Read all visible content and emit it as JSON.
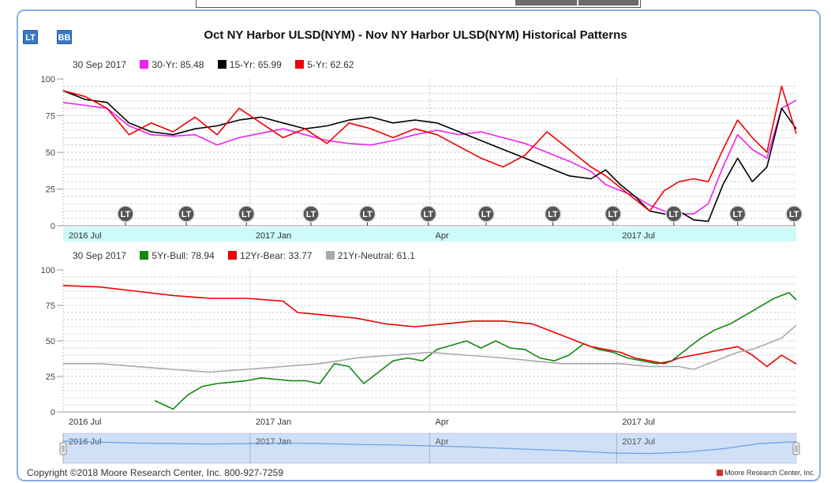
{
  "toolbar": {
    "lt_label": "LT",
    "bb_label": "BB"
  },
  "header": {
    "title": "Oct NY Harbor ULSD(NYM) - Nov NY Harbor ULSD(NYM) Historical Patterns"
  },
  "footer": {
    "copyright": "Copyright ©2018 Moore Research Center, Inc. 800-927-7259",
    "logo_text": "Moore Research Center, Inc."
  },
  "colors": {
    "magenta": "#ee22ee",
    "black": "#000000",
    "red": "#ee0000",
    "green": "#118811",
    "gray": "#aaaaaa",
    "navigator": "#6aa0dd"
  },
  "chart_data": [
    {
      "type": "line",
      "legend_date": "30 Sep 2017",
      "ylim": [
        0,
        100
      ],
      "yticks": [
        "0",
        "25",
        "50",
        "75",
        "100"
      ],
      "xticks": [
        "2016 Jul",
        "2017 Jan",
        "Apr",
        "2017 Jul"
      ],
      "marker_label": "LT",
      "series": [
        {
          "name": "30-Yr: 85.48",
          "color": "#ee22ee",
          "points": [
            [
              0,
              84
            ],
            [
              0.03,
              82
            ],
            [
              0.06,
              80
            ],
            [
              0.09,
              68
            ],
            [
              0.12,
              62
            ],
            [
              0.15,
              61
            ],
            [
              0.18,
              62
            ],
            [
              0.21,
              55
            ],
            [
              0.24,
              60
            ],
            [
              0.27,
              63
            ],
            [
              0.3,
              66
            ],
            [
              0.33,
              62
            ],
            [
              0.36,
              58
            ],
            [
              0.39,
              56
            ],
            [
              0.42,
              55
            ],
            [
              0.45,
              58
            ],
            [
              0.48,
              62
            ],
            [
              0.51,
              65
            ],
            [
              0.54,
              62
            ],
            [
              0.57,
              64
            ],
            [
              0.6,
              60
            ],
            [
              0.63,
              56
            ],
            [
              0.66,
              50
            ],
            [
              0.69,
              44
            ],
            [
              0.72,
              37
            ],
            [
              0.74,
              28
            ],
            [
              0.76,
              24
            ],
            [
              0.78,
              20
            ],
            [
              0.8,
              14
            ],
            [
              0.82,
              10
            ],
            [
              0.84,
              8
            ],
            [
              0.86,
              8
            ],
            [
              0.88,
              15
            ],
            [
              0.9,
              40
            ],
            [
              0.92,
              62
            ],
            [
              0.94,
              52
            ],
            [
              0.96,
              46
            ],
            [
              0.98,
              80
            ],
            [
              1.0,
              85.48
            ]
          ]
        },
        {
          "name": "15-Yr: 65.99",
          "color": "#000000",
          "points": [
            [
              0,
              92
            ],
            [
              0.03,
              86
            ],
            [
              0.06,
              84
            ],
            [
              0.09,
              70
            ],
            [
              0.12,
              64
            ],
            [
              0.15,
              62
            ],
            [
              0.18,
              66
            ],
            [
              0.21,
              68
            ],
            [
              0.24,
              72
            ],
            [
              0.27,
              74
            ],
            [
              0.3,
              70
            ],
            [
              0.33,
              66
            ],
            [
              0.36,
              68
            ],
            [
              0.39,
              72
            ],
            [
              0.42,
              74
            ],
            [
              0.45,
              70
            ],
            [
              0.48,
              72
            ],
            [
              0.51,
              70
            ],
            [
              0.54,
              64
            ],
            [
              0.57,
              58
            ],
            [
              0.6,
              52
            ],
            [
              0.63,
              46
            ],
            [
              0.66,
              40
            ],
            [
              0.69,
              34
            ],
            [
              0.72,
              32
            ],
            [
              0.74,
              38
            ],
            [
              0.76,
              28
            ],
            [
              0.78,
              20
            ],
            [
              0.8,
              10
            ],
            [
              0.82,
              8
            ],
            [
              0.84,
              10
            ],
            [
              0.86,
              4
            ],
            [
              0.88,
              3
            ],
            [
              0.9,
              28
            ],
            [
              0.92,
              46
            ],
            [
              0.94,
              30
            ],
            [
              0.96,
              40
            ],
            [
              0.98,
              80
            ],
            [
              1.0,
              65.99
            ]
          ]
        },
        {
          "name": "5-Yr: 62.62",
          "color": "#ee0000",
          "points": [
            [
              0,
              92
            ],
            [
              0.03,
              88
            ],
            [
              0.06,
              80
            ],
            [
              0.09,
              62
            ],
            [
              0.12,
              70
            ],
            [
              0.15,
              64
            ],
            [
              0.18,
              74
            ],
            [
              0.21,
              62
            ],
            [
              0.24,
              80
            ],
            [
              0.27,
              70
            ],
            [
              0.3,
              60
            ],
            [
              0.33,
              66
            ],
            [
              0.36,
              56
            ],
            [
              0.39,
              70
            ],
            [
              0.42,
              66
            ],
            [
              0.45,
              60
            ],
            [
              0.48,
              66
            ],
            [
              0.51,
              62
            ],
            [
              0.54,
              54
            ],
            [
              0.57,
              46
            ],
            [
              0.6,
              40
            ],
            [
              0.63,
              48
            ],
            [
              0.66,
              64
            ],
            [
              0.69,
              52
            ],
            [
              0.72,
              40
            ],
            [
              0.74,
              34
            ],
            [
              0.76,
              26
            ],
            [
              0.78,
              18
            ],
            [
              0.8,
              10
            ],
            [
              0.82,
              24
            ],
            [
              0.84,
              30
            ],
            [
              0.86,
              32
            ],
            [
              0.88,
              30
            ],
            [
              0.9,
              52
            ],
            [
              0.92,
              72
            ],
            [
              0.94,
              60
            ],
            [
              0.96,
              50
            ],
            [
              0.98,
              95
            ],
            [
              1.0,
              62.62
            ]
          ]
        }
      ]
    },
    {
      "type": "line",
      "legend_date": "30 Sep 2017",
      "ylim": [
        0,
        100
      ],
      "yticks": [
        "0",
        "25",
        "50",
        "75",
        "100"
      ],
      "xticks": [
        "2016 Jul",
        "2017 Jan",
        "Apr",
        "2017 Jul"
      ],
      "series": [
        {
          "name": "5Yr-Bull: 78.94",
          "color": "#118811",
          "points": [
            [
              0.125,
              8
            ],
            [
              0.15,
              2
            ],
            [
              0.17,
              12
            ],
            [
              0.19,
              18
            ],
            [
              0.21,
              20
            ],
            [
              0.23,
              21
            ],
            [
              0.25,
              22
            ],
            [
              0.27,
              24
            ],
            [
              0.29,
              23
            ],
            [
              0.31,
              22
            ],
            [
              0.33,
              22
            ],
            [
              0.35,
              20
            ],
            [
              0.37,
              34
            ],
            [
              0.39,
              32
            ],
            [
              0.41,
              20
            ],
            [
              0.43,
              28
            ],
            [
              0.45,
              36
            ],
            [
              0.47,
              38
            ],
            [
              0.49,
              36
            ],
            [
              0.51,
              44
            ],
            [
              0.53,
              47
            ],
            [
              0.55,
              50
            ],
            [
              0.57,
              45
            ],
            [
              0.59,
              50
            ],
            [
              0.61,
              45
            ],
            [
              0.63,
              44
            ],
            [
              0.65,
              38
            ],
            [
              0.67,
              36
            ],
            [
              0.69,
              40
            ],
            [
              0.71,
              48
            ],
            [
              0.73,
              44
            ],
            [
              0.75,
              42
            ],
            [
              0.77,
              38
            ],
            [
              0.79,
              36
            ],
            [
              0.81,
              34
            ],
            [
              0.83,
              36
            ],
            [
              0.85,
              44
            ],
            [
              0.87,
              52
            ],
            [
              0.89,
              58
            ],
            [
              0.91,
              62
            ],
            [
              0.93,
              68
            ],
            [
              0.95,
              74
            ],
            [
              0.97,
              80
            ],
            [
              0.99,
              84
            ],
            [
              1.0,
              78.94
            ]
          ]
        },
        {
          "name": "12Yr-Bear: 33.77",
          "color": "#ee0000",
          "points": [
            [
              0,
              89
            ],
            [
              0.05,
              88
            ],
            [
              0.1,
              85
            ],
            [
              0.15,
              82
            ],
            [
              0.2,
              80
            ],
            [
              0.25,
              80
            ],
            [
              0.3,
              78
            ],
            [
              0.32,
              70
            ],
            [
              0.36,
              68
            ],
            [
              0.4,
              66
            ],
            [
              0.44,
              62
            ],
            [
              0.48,
              60
            ],
            [
              0.52,
              62
            ],
            [
              0.56,
              64
            ],
            [
              0.6,
              64
            ],
            [
              0.64,
              62
            ],
            [
              0.68,
              54
            ],
            [
              0.72,
              46
            ],
            [
              0.74,
              44
            ],
            [
              0.76,
              42
            ],
            [
              0.78,
              38
            ],
            [
              0.8,
              36
            ],
            [
              0.82,
              34
            ],
            [
              0.84,
              38
            ],
            [
              0.86,
              40
            ],
            [
              0.88,
              42
            ],
            [
              0.9,
              44
            ],
            [
              0.92,
              46
            ],
            [
              0.94,
              40
            ],
            [
              0.96,
              32
            ],
            [
              0.98,
              40
            ],
            [
              1.0,
              33.77
            ]
          ]
        },
        {
          "name": "21Yr-Neutral: 61.1",
          "color": "#aaaaaa",
          "points": [
            [
              0,
              34
            ],
            [
              0.05,
              34
            ],
            [
              0.1,
              32
            ],
            [
              0.15,
              30
            ],
            [
              0.2,
              28
            ],
            [
              0.25,
              30
            ],
            [
              0.3,
              32
            ],
            [
              0.35,
              34
            ],
            [
              0.4,
              38
            ],
            [
              0.45,
              40
            ],
            [
              0.5,
              42
            ],
            [
              0.55,
              40
            ],
            [
              0.6,
              38
            ],
            [
              0.64,
              36
            ],
            [
              0.68,
              34
            ],
            [
              0.72,
              34
            ],
            [
              0.76,
              34
            ],
            [
              0.8,
              32
            ],
            [
              0.84,
              32
            ],
            [
              0.86,
              30
            ],
            [
              0.88,
              34
            ],
            [
              0.9,
              38
            ],
            [
              0.92,
              42
            ],
            [
              0.94,
              44
            ],
            [
              0.96,
              48
            ],
            [
              0.98,
              52
            ],
            [
              1.0,
              61.1
            ]
          ]
        }
      ]
    }
  ],
  "navigator": {
    "xticks": [
      "2016 Jul",
      "2017 Jan",
      "Apr",
      "2017 Jul"
    ],
    "values": [
      80,
      76,
      72,
      70,
      68,
      70,
      72,
      70,
      66,
      64,
      60,
      56,
      50,
      44,
      38,
      30,
      28,
      34,
      48,
      70,
      78
    ]
  }
}
